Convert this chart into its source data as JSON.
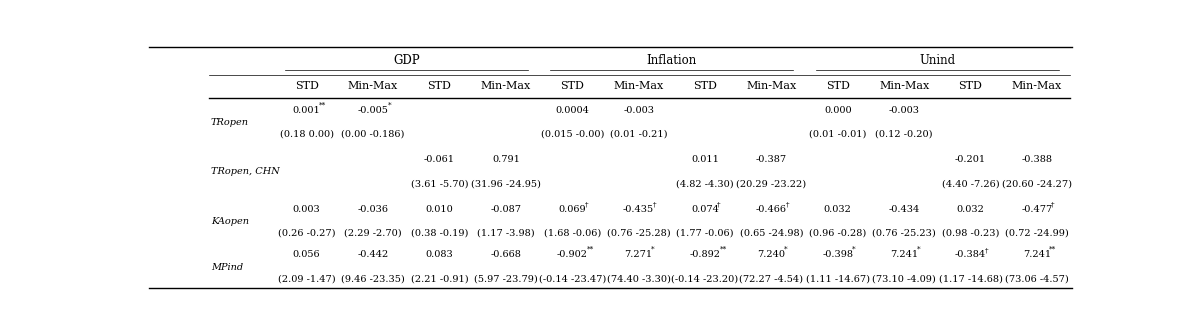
{
  "bg_color": "#ffffff",
  "text_color": "#000000",
  "font_size": 7.0,
  "label_font_size": 7.0,
  "header_font_size": 8.0,
  "group_header_font_size": 8.5,
  "col_headers": [
    "STD",
    "Min-Max",
    "STD",
    "Min-Max",
    "STD",
    "Min-Max",
    "STD",
    "Min-Max",
    "STD",
    "Min-Max",
    "STD",
    "Min-Max"
  ],
  "group_headers": [
    {
      "label": "GDP",
      "start": 0,
      "end": 3
    },
    {
      "label": "Inflation",
      "start": 4,
      "end": 7
    },
    {
      "label": "Unind",
      "start": 8,
      "end": 11
    }
  ],
  "rows": [
    {
      "label": "TRopen",
      "cells": [
        {
          "top": "0.001",
          "sup": "**",
          "bot": "(0.18 0.00)"
        },
        {
          "top": "-0.005",
          "sup": "*",
          "bot": "(0.00 -0.186)"
        },
        {
          "top": "",
          "sup": "",
          "bot": ""
        },
        {
          "top": "",
          "sup": "",
          "bot": ""
        },
        {
          "top": "0.0004",
          "sup": "",
          "bot": "(0.015 -0.00)"
        },
        {
          "top": "-0.003",
          "sup": "",
          "bot": "(0.01 -0.21)"
        },
        {
          "top": "",
          "sup": "",
          "bot": ""
        },
        {
          "top": "",
          "sup": "",
          "bot": ""
        },
        {
          "top": "0.000",
          "sup": "",
          "bot": "(0.01 -0.01)"
        },
        {
          "top": "-0.003",
          "sup": "",
          "bot": "(0.12 -0.20)"
        },
        {
          "top": "",
          "sup": "",
          "bot": ""
        },
        {
          "top": "",
          "sup": "",
          "bot": ""
        }
      ]
    },
    {
      "label": "TRopen, CHN",
      "cells": [
        {
          "top": "",
          "sup": "",
          "bot": ""
        },
        {
          "top": "",
          "sup": "",
          "bot": ""
        },
        {
          "top": "-0.061",
          "sup": "",
          "bot": "(3.61 -5.70)"
        },
        {
          "top": "0.791",
          "sup": "",
          "bot": "(31.96 -24.95)"
        },
        {
          "top": "",
          "sup": "",
          "bot": ""
        },
        {
          "top": "",
          "sup": "",
          "bot": ""
        },
        {
          "top": "0.011",
          "sup": "",
          "bot": "(4.82 -4.30)"
        },
        {
          "top": "-0.387",
          "sup": "",
          "bot": "(20.29 -23.22)"
        },
        {
          "top": "",
          "sup": "",
          "bot": ""
        },
        {
          "top": "",
          "sup": "",
          "bot": ""
        },
        {
          "top": "-0.201",
          "sup": "",
          "bot": "(4.40 -7.26)"
        },
        {
          "top": "-0.388",
          "sup": "",
          "bot": "(20.60 -24.27)"
        }
      ]
    },
    {
      "label": "KAopen",
      "cells": [
        {
          "top": "0.003",
          "sup": "",
          "bot": "(0.26 -0.27)"
        },
        {
          "top": "-0.036",
          "sup": "",
          "bot": "(2.29 -2.70)"
        },
        {
          "top": "0.010",
          "sup": "",
          "bot": "(0.38 -0.19)"
        },
        {
          "top": "-0.087",
          "sup": "",
          "bot": "(1.17 -3.98)"
        },
        {
          "top": "0.069",
          "sup": "†",
          "bot": "(1.68 -0.06)"
        },
        {
          "top": "-0.435",
          "sup": "†",
          "bot": "(0.76 -25.28)"
        },
        {
          "top": "0.074",
          "sup": "†",
          "bot": "(1.77 -0.06)"
        },
        {
          "top": "-0.466",
          "sup": "†",
          "bot": "(0.65 -24.98)"
        },
        {
          "top": "0.032",
          "sup": "",
          "bot": "(0.96 -0.28)"
        },
        {
          "top": "-0.434",
          "sup": "",
          "bot": "(0.76 -25.23)"
        },
        {
          "top": "0.032",
          "sup": "",
          "bot": "(0.98 -0.23)"
        },
        {
          "top": "-0.477",
          "sup": "†",
          "bot": "(0.72 -24.99)"
        }
      ]
    },
    {
      "label": "MPind",
      "cells": [
        {
          "top": "0.056",
          "sup": "",
          "bot": "(2.09 -1.47)"
        },
        {
          "top": "-0.442",
          "sup": "",
          "bot": "(9.46 -23.35)"
        },
        {
          "top": "0.083",
          "sup": "",
          "bot": "(2.21 -0.91)"
        },
        {
          "top": "-0.668",
          "sup": "",
          "bot": "(5.97 -23.79)"
        },
        {
          "top": "-0.902",
          "sup": "**",
          "bot": "(-0.14 -23.47)"
        },
        {
          "top": "7.271",
          "sup": "*",
          "bot": "(74.40 -3.30)"
        },
        {
          "top": "-0.892",
          "sup": "**",
          "bot": "(-0.14 -23.20)"
        },
        {
          "top": "7.240",
          "sup": "*",
          "bot": "(72.27 -4.54)"
        },
        {
          "top": "-0.398",
          "sup": "*",
          "bot": "(1.11 -14.67)"
        },
        {
          "top": "7.241",
          "sup": "*",
          "bot": "(73.10 -4.09)"
        },
        {
          "top": "-0.384",
          "sup": "†",
          "bot": "(1.17 -14.68)"
        },
        {
          "top": "7.241",
          "sup": "**",
          "bot": "(73.06 -4.57)"
        }
      ]
    }
  ]
}
